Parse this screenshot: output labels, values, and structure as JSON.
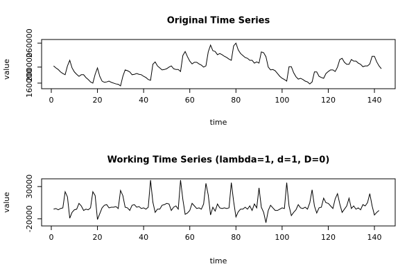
{
  "chart_data": [
    {
      "type": "line",
      "title": "Original Time Series",
      "x_label": "time",
      "y_label": "value",
      "color": "#000000",
      "x": [
        1,
        2,
        3,
        4,
        5,
        6,
        7,
        8,
        9,
        10,
        11,
        12,
        13,
        14,
        15,
        16,
        17,
        18,
        19,
        20,
        21,
        22,
        23,
        24,
        25,
        26,
        27,
        28,
        29,
        30,
        31,
        32,
        33,
        34,
        35,
        36,
        37,
        38,
        39,
        40,
        41,
        42,
        43,
        44,
        45,
        46,
        47,
        48,
        49,
        50,
        51,
        52,
        53,
        54,
        55,
        56,
        57,
        58,
        59,
        60,
        61,
        62,
        63,
        64,
        65,
        66,
        67,
        68,
        69,
        70,
        71,
        72,
        73,
        74,
        75,
        76,
        77,
        78,
        79,
        80,
        81,
        82,
        83,
        84,
        85,
        86,
        87,
        88,
        89,
        90,
        91,
        92,
        93,
        94,
        95,
        96,
        97,
        98,
        99,
        100,
        101,
        102,
        103,
        104,
        105,
        106,
        107,
        108,
        109,
        110,
        111,
        112,
        113,
        114,
        115,
        116,
        117,
        118,
        119,
        120,
        121,
        122,
        123,
        124,
        125,
        126,
        127,
        128,
        129,
        130,
        131,
        132,
        133,
        134,
        135,
        136,
        137,
        138,
        139,
        140,
        141,
        142,
        143
      ],
      "values": [
        203000,
        198000,
        194000,
        188000,
        184000,
        181000,
        203000,
        217000,
        198000,
        188000,
        182000,
        177000,
        181000,
        181000,
        174000,
        169000,
        163000,
        160000,
        182000,
        198000,
        177000,
        165000,
        162000,
        163000,
        165000,
        162000,
        160000,
        158000,
        157000,
        153000,
        177000,
        193000,
        191000,
        188000,
        181000,
        182000,
        184000,
        182000,
        181000,
        177000,
        174000,
        169000,
        167000,
        207000,
        213000,
        203000,
        198000,
        193000,
        194000,
        196000,
        200000,
        203000,
        196000,
        194000,
        194000,
        189000,
        229000,
        239000,
        226000,
        215000,
        208000,
        212000,
        212000,
        208000,
        205000,
        200000,
        203000,
        238000,
        255000,
        241000,
        239000,
        231000,
        234000,
        231000,
        227000,
        224000,
        220000,
        217000,
        253000,
        260000,
        243000,
        234000,
        229000,
        224000,
        222000,
        217000,
        217000,
        210000,
        213000,
        210000,
        238000,
        236000,
        226000,
        200000,
        193000,
        194000,
        191000,
        184000,
        177000,
        172000,
        169000,
        165000,
        201000,
        201000,
        186000,
        176000,
        170000,
        172000,
        169000,
        165000,
        163000,
        158000,
        163000,
        188000,
        188000,
        177000,
        174000,
        172000,
        184000,
        189000,
        193000,
        193000,
        189000,
        200000,
        219000,
        222000,
        212000,
        207000,
        207000,
        219000,
        215000,
        215000,
        210000,
        207000,
        201000,
        203000,
        203000,
        208000,
        227000,
        227000,
        213000,
        203000,
        196000
      ],
      "xlim": [
        -4.2,
        149
      ],
      "xticks": [
        0,
        20,
        40,
        60,
        80,
        100,
        120,
        140
      ],
      "ylim": [
        146000,
        269000
      ],
      "yticks": [
        160000,
        200000,
        260000
      ]
    },
    {
      "type": "line",
      "title": "Working Time Series (lambda=1, d=1, D=0)",
      "x_label": "time",
      "y_label": "value",
      "color": "#000000",
      "x": [
        1,
        2,
        3,
        4,
        5,
        6,
        7,
        8,
        9,
        10,
        11,
        12,
        13,
        14,
        15,
        16,
        17,
        18,
        19,
        20,
        21,
        22,
        23,
        24,
        25,
        26,
        27,
        28,
        29,
        30,
        31,
        32,
        33,
        34,
        35,
        36,
        37,
        38,
        39,
        40,
        41,
        42,
        43,
        44,
        45,
        46,
        47,
        48,
        49,
        50,
        51,
        52,
        53,
        54,
        55,
        56,
        57,
        58,
        59,
        60,
        61,
        62,
        63,
        64,
        65,
        66,
        67,
        68,
        69,
        70,
        71,
        72,
        73,
        74,
        75,
        76,
        77,
        78,
        79,
        80,
        81,
        82,
        83,
        84,
        85,
        86,
        87,
        88,
        89,
        90,
        91,
        92,
        93,
        94,
        95,
        96,
        97,
        98,
        99,
        100,
        101,
        102,
        103,
        104,
        105,
        106,
        107,
        108,
        109,
        110,
        111,
        112,
        113,
        114,
        115,
        116,
        117,
        118,
        119,
        120,
        121,
        122,
        123,
        124,
        125,
        126,
        127,
        128,
        129,
        130,
        131,
        132,
        133,
        134,
        135,
        136,
        137,
        138,
        139,
        140,
        141,
        142
      ],
      "values": [
        -5000,
        -4000,
        -6000,
        -4000,
        -3000,
        22000,
        14000,
        -19000,
        -10000,
        -6000,
        -5000,
        4000,
        0,
        -7000,
        -5000,
        -6000,
        -3000,
        22000,
        16000,
        -21000,
        -12000,
        -3000,
        1000,
        2000,
        -3000,
        -2000,
        -2000,
        -1000,
        -4000,
        24000,
        16000,
        -2000,
        -3000,
        -7000,
        1000,
        2000,
        -2000,
        -1000,
        -4000,
        -3000,
        -5000,
        -2000,
        40000,
        6000,
        -10000,
        -5000,
        -5000,
        1000,
        2000,
        4000,
        3000,
        -7000,
        -2000,
        0,
        -5000,
        40000,
        10000,
        -13000,
        -11000,
        -7000,
        4000,
        0,
        -4000,
        -3000,
        -5000,
        3000,
        35000,
        17000,
        -14000,
        -2000,
        -8000,
        3000,
        -3000,
        -4000,
        -3000,
        -4000,
        -3000,
        36000,
        7000,
        -17000,
        -9000,
        -5000,
        -5000,
        -2000,
        -5000,
        0,
        -7000,
        3000,
        -3000,
        28000,
        -2000,
        -10000,
        -26000,
        -7000,
        1000,
        -3000,
        -7000,
        -7000,
        -5000,
        -3000,
        -4000,
        36000,
        0,
        -15000,
        -10000,
        -6000,
        2000,
        -3000,
        -4000,
        -2000,
        -5000,
        5000,
        25000,
        0,
        -11000,
        -3000,
        -2000,
        12000,
        5000,
        4000,
        0,
        -4000,
        11000,
        19000,
        3000,
        -10000,
        -5000,
        0,
        12000,
        -4000,
        0,
        -5000,
        -3000,
        -6000,
        2000,
        0,
        5000,
        19000,
        0,
        -14000,
        -10000,
        -7000
      ],
      "xlim": [
        -4.2,
        149
      ],
      "xticks": [
        0,
        20,
        40,
        60,
        80,
        100,
        120,
        140
      ],
      "ylim": [
        -31000,
        42000
      ],
      "yticks": [
        -20000,
        30000
      ]
    }
  ]
}
